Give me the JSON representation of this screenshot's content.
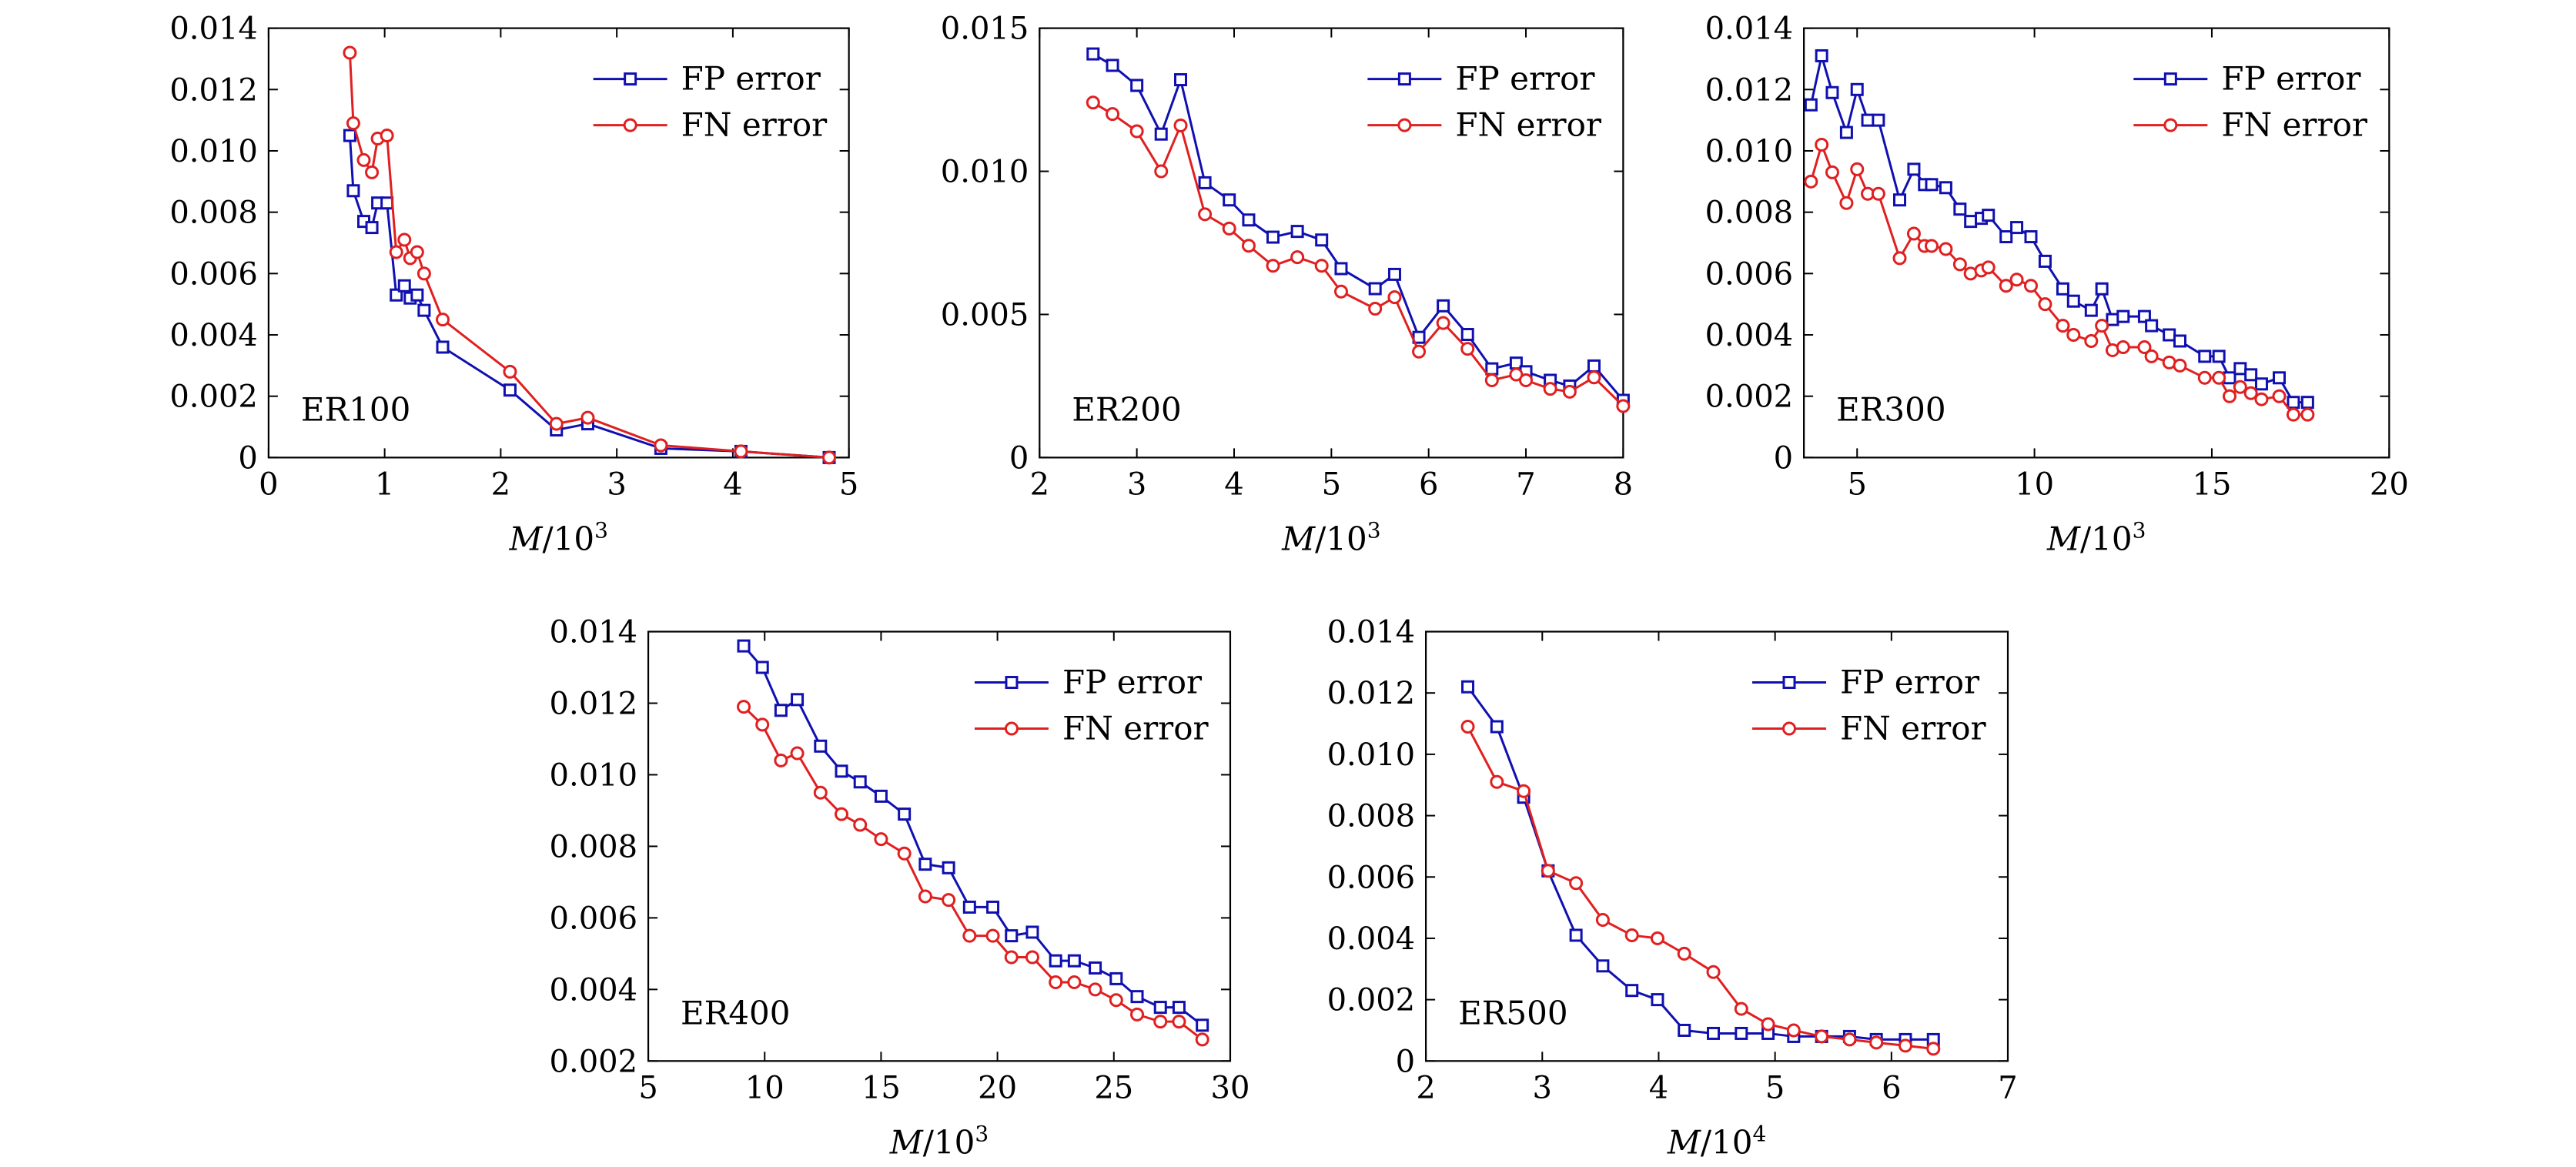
{
  "chart_data": [
    {
      "type": "line",
      "annotation": "ER100",
      "xlabel": {
        "var": "M",
        "base": "/10",
        "exp": "3"
      },
      "xlim": [
        0,
        5
      ],
      "xticks": [
        0,
        1,
        2,
        3,
        4,
        5
      ],
      "xtick_labels": [
        "0",
        "1",
        "2",
        "3",
        "4",
        "5"
      ],
      "ylim": [
        0,
        0.014
      ],
      "yticks": [
        0,
        0.002,
        0.004,
        0.006,
        0.008,
        0.01,
        0.012,
        0.014
      ],
      "ytick_labels": [
        "0",
        "0.002",
        "0.004",
        "0.006",
        "0.008",
        "0.010",
        "0.012",
        "0.014"
      ],
      "legend": "top-right",
      "series": [
        {
          "name": "FP error",
          "color": "#1010b0",
          "marker": "square",
          "x": [
            0.7,
            0.73,
            0.82,
            0.89,
            0.94,
            1.02,
            1.1,
            1.17,
            1.22,
            1.28,
            1.34,
            1.5,
            2.08,
            2.48,
            2.75,
            3.38,
            4.07,
            4.83
          ],
          "y": [
            0.0105,
            0.0087,
            0.0077,
            0.0075,
            0.0083,
            0.0083,
            0.0053,
            0.0056,
            0.0052,
            0.0053,
            0.0048,
            0.0036,
            0.0022,
            0.0009,
            0.0011,
            0.0003,
            0.0002,
            0.0
          ]
        },
        {
          "name": "FN error",
          "color": "#e02020",
          "marker": "circle",
          "x": [
            0.7,
            0.73,
            0.82,
            0.89,
            0.94,
            1.02,
            1.1,
            1.17,
            1.22,
            1.28,
            1.34,
            1.5,
            2.08,
            2.48,
            2.75,
            3.38,
            4.07,
            4.83
          ],
          "y": [
            0.0132,
            0.0109,
            0.0097,
            0.0093,
            0.0104,
            0.0105,
            0.0067,
            0.0071,
            0.0065,
            0.0067,
            0.006,
            0.0045,
            0.0028,
            0.0011,
            0.0013,
            0.0004,
            0.0002,
            0.0
          ]
        }
      ]
    },
    {
      "type": "line",
      "annotation": "ER200",
      "xlabel": {
        "var": "M",
        "base": "/10",
        "exp": "3"
      },
      "xlim": [
        2,
        8
      ],
      "xticks": [
        2,
        3,
        4,
        5,
        6,
        7,
        8
      ],
      "xtick_labels": [
        "2",
        "3",
        "4",
        "5",
        "6",
        "7",
        "8"
      ],
      "ylim": [
        0,
        0.015
      ],
      "yticks": [
        0,
        0.005,
        0.01,
        0.015
      ],
      "ytick_labels": [
        "0",
        "0.005",
        "0.010",
        "0.015"
      ],
      "legend": "top-right",
      "series": [
        {
          "name": "FP error",
          "color": "#1010b0",
          "marker": "square",
          "x": [
            2.55,
            2.75,
            3.0,
            3.25,
            3.45,
            3.7,
            3.95,
            4.15,
            4.4,
            4.65,
            4.9,
            5.1,
            5.45,
            5.65,
            5.9,
            6.15,
            6.4,
            6.65,
            6.9,
            7.0,
            7.25,
            7.45,
            7.7,
            8.0
          ],
          "y": [
            0.0141,
            0.0137,
            0.013,
            0.0113,
            0.0132,
            0.0096,
            0.009,
            0.0083,
            0.0077,
            0.0079,
            0.0076,
            0.0066,
            0.0059,
            0.0064,
            0.0042,
            0.0053,
            0.0043,
            0.0031,
            0.0033,
            0.003,
            0.0027,
            0.0025,
            0.0032,
            0.002
          ]
        },
        {
          "name": "FN error",
          "color": "#e02020",
          "marker": "circle",
          "x": [
            2.55,
            2.75,
            3.0,
            3.25,
            3.45,
            3.7,
            3.95,
            4.15,
            4.4,
            4.65,
            4.9,
            5.1,
            5.45,
            5.65,
            5.9,
            6.15,
            6.4,
            6.65,
            6.9,
            7.0,
            7.25,
            7.45,
            7.7,
            8.0
          ],
          "y": [
            0.0124,
            0.012,
            0.0114,
            0.01,
            0.0116,
            0.0085,
            0.008,
            0.0074,
            0.0067,
            0.007,
            0.0067,
            0.0058,
            0.0052,
            0.0056,
            0.0037,
            0.0047,
            0.0038,
            0.0027,
            0.0029,
            0.0027,
            0.0024,
            0.0023,
            0.0028,
            0.0018
          ]
        }
      ]
    },
    {
      "type": "line",
      "annotation": "ER300",
      "xlabel": {
        "var": "M",
        "base": "/10",
        "exp": "3"
      },
      "xlim": [
        3.5,
        20
      ],
      "xticks": [
        5,
        10,
        15,
        20
      ],
      "xtick_labels": [
        "5",
        "10",
        "15",
        "20"
      ],
      "ylim": [
        0,
        0.014
      ],
      "yticks": [
        0,
        0.002,
        0.004,
        0.006,
        0.008,
        0.01,
        0.012,
        0.014
      ],
      "ytick_labels": [
        "0",
        "0.002",
        "0.004",
        "0.006",
        "0.008",
        "0.010",
        "0.012",
        "0.014"
      ],
      "legend": "top-right",
      "series": [
        {
          "name": "FP error",
          "color": "#1010b0",
          "marker": "square",
          "x": [
            3.7,
            4.0,
            4.3,
            4.7,
            5.0,
            5.3,
            5.6,
            6.2,
            6.6,
            6.9,
            7.1,
            7.5,
            7.9,
            8.2,
            8.5,
            8.7,
            9.2,
            9.5,
            9.9,
            10.3,
            10.8,
            11.1,
            11.6,
            11.9,
            12.2,
            12.5,
            13.1,
            13.3,
            13.8,
            14.1,
            14.8,
            15.2,
            15.5,
            15.8,
            16.1,
            16.4,
            16.9,
            17.3,
            17.7
          ],
          "y": [
            0.0115,
            0.0131,
            0.0119,
            0.0106,
            0.012,
            0.011,
            0.011,
            0.0084,
            0.0094,
            0.0089,
            0.0089,
            0.0088,
            0.0081,
            0.0077,
            0.0078,
            0.0079,
            0.0072,
            0.0075,
            0.0072,
            0.0064,
            0.0055,
            0.0051,
            0.0048,
            0.0055,
            0.0045,
            0.0046,
            0.0046,
            0.0043,
            0.004,
            0.0038,
            0.0033,
            0.0033,
            0.0026,
            0.0029,
            0.0027,
            0.0024,
            0.0026,
            0.0018,
            0.0018
          ]
        },
        {
          "name": "FN error",
          "color": "#e02020",
          "marker": "circle",
          "x": [
            3.7,
            4.0,
            4.3,
            4.7,
            5.0,
            5.3,
            5.6,
            6.2,
            6.6,
            6.9,
            7.1,
            7.5,
            7.9,
            8.2,
            8.5,
            8.7,
            9.2,
            9.5,
            9.9,
            10.3,
            10.8,
            11.1,
            11.6,
            11.9,
            12.2,
            12.5,
            13.1,
            13.3,
            13.8,
            14.1,
            14.8,
            15.2,
            15.5,
            15.8,
            16.1,
            16.4,
            16.9,
            17.3,
            17.7
          ],
          "y": [
            0.009,
            0.0102,
            0.0093,
            0.0083,
            0.0094,
            0.0086,
            0.0086,
            0.0065,
            0.0073,
            0.0069,
            0.0069,
            0.0068,
            0.0063,
            0.006,
            0.0061,
            0.0062,
            0.0056,
            0.0058,
            0.0056,
            0.005,
            0.0043,
            0.004,
            0.0038,
            0.0043,
            0.0035,
            0.0036,
            0.0036,
            0.0033,
            0.0031,
            0.003,
            0.0026,
            0.0026,
            0.002,
            0.0023,
            0.0021,
            0.0019,
            0.002,
            0.0014,
            0.0014
          ]
        }
      ]
    },
    {
      "type": "line",
      "annotation": "ER400",
      "xlabel": {
        "var": "M",
        "base": "/10",
        "exp": "3"
      },
      "xlim": [
        5,
        30
      ],
      "xticks": [
        5,
        10,
        15,
        20,
        25,
        30
      ],
      "xtick_labels": [
        "5",
        "10",
        "15",
        "20",
        "25",
        "30"
      ],
      "ylim": [
        0.002,
        0.014
      ],
      "yticks": [
        0.002,
        0.004,
        0.006,
        0.008,
        0.01,
        0.012,
        0.014
      ],
      "ytick_labels": [
        "0.002",
        "0.004",
        "0.006",
        "0.008",
        "0.010",
        "0.012",
        "0.014"
      ],
      "legend": "top-right",
      "series": [
        {
          "name": "FP error",
          "color": "#1010b0",
          "marker": "square",
          "x": [
            9.1,
            9.9,
            10.7,
            11.4,
            12.4,
            13.3,
            14.1,
            15.0,
            16.0,
            16.9,
            17.9,
            18.8,
            19.8,
            20.6,
            21.5,
            22.5,
            23.3,
            24.2,
            25.1,
            26.0,
            27.0,
            27.8,
            28.8
          ],
          "y": [
            0.0136,
            0.013,
            0.0118,
            0.0121,
            0.0108,
            0.0101,
            0.0098,
            0.0094,
            0.0089,
            0.0075,
            0.0074,
            0.0063,
            0.0063,
            0.0055,
            0.0056,
            0.0048,
            0.0048,
            0.0046,
            0.0043,
            0.0038,
            0.0035,
            0.0035,
            0.003
          ]
        },
        {
          "name": "FN error",
          "color": "#e02020",
          "marker": "circle",
          "x": [
            9.1,
            9.9,
            10.7,
            11.4,
            12.4,
            13.3,
            14.1,
            15.0,
            16.0,
            16.9,
            17.9,
            18.8,
            19.8,
            20.6,
            21.5,
            22.5,
            23.3,
            24.2,
            25.1,
            26.0,
            27.0,
            27.8,
            28.8
          ],
          "y": [
            0.0119,
            0.0114,
            0.0104,
            0.0106,
            0.0095,
            0.0089,
            0.0086,
            0.0082,
            0.0078,
            0.0066,
            0.0065,
            0.0055,
            0.0055,
            0.0049,
            0.0049,
            0.0042,
            0.0042,
            0.004,
            0.0037,
            0.0033,
            0.0031,
            0.0031,
            0.0026
          ]
        }
      ]
    },
    {
      "type": "line",
      "annotation": "ER500",
      "xlabel": {
        "var": "M",
        "base": "/10",
        "exp": "4"
      },
      "xlim": [
        2,
        7
      ],
      "xticks": [
        2,
        3,
        4,
        5,
        6,
        7
      ],
      "xtick_labels": [
        "2",
        "3",
        "4",
        "5",
        "6",
        "7"
      ],
      "ylim": [
        0,
        0.014
      ],
      "yticks": [
        0,
        0.002,
        0.004,
        0.006,
        0.008,
        0.01,
        0.012,
        0.014
      ],
      "ytick_labels": [
        "0",
        "0.002",
        "0.004",
        "0.006",
        "0.008",
        "0.010",
        "0.012",
        "0.014"
      ],
      "legend": "top-right",
      "series": [
        {
          "name": "FP error",
          "color": "#1010b0",
          "marker": "square",
          "x": [
            2.36,
            2.61,
            2.84,
            3.05,
            3.29,
            3.52,
            3.77,
            3.99,
            4.22,
            4.47,
            4.71,
            4.94,
            5.16,
            5.4,
            5.64,
            5.87,
            6.12,
            6.36
          ],
          "y": [
            0.0122,
            0.0109,
            0.0086,
            0.0062,
            0.0041,
            0.0031,
            0.0023,
            0.002,
            0.001,
            0.0009,
            0.0009,
            0.0009,
            0.0008,
            0.0008,
            0.0008,
            0.0007,
            0.0007,
            0.0007
          ]
        },
        {
          "name": "FN error",
          "color": "#e02020",
          "marker": "circle",
          "x": [
            2.36,
            2.61,
            2.84,
            3.05,
            3.29,
            3.52,
            3.77,
            3.99,
            4.22,
            4.47,
            4.71,
            4.94,
            5.16,
            5.4,
            5.64,
            5.87,
            6.12,
            6.36
          ],
          "y": [
            0.0109,
            0.0091,
            0.0088,
            0.0062,
            0.0058,
            0.0046,
            0.0041,
            0.004,
            0.0035,
            0.0029,
            0.0017,
            0.0012,
            0.001,
            0.0008,
            0.0007,
            0.0006,
            0.0005,
            0.0004
          ]
        }
      ]
    }
  ]
}
